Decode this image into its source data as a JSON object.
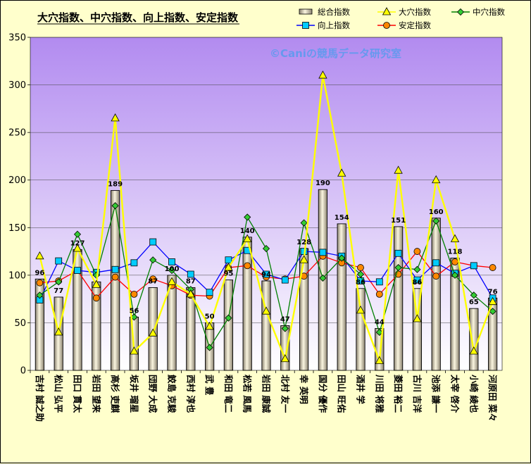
{
  "chart_data": {
    "type": "bar+line",
    "title": "大穴指数、中穴指数、向上指数、安定指数",
    "watermark": "©Caniの競馬データ研究室",
    "ylim": [
      0,
      350
    ],
    "yticks": [
      0,
      50,
      100,
      150,
      200,
      250,
      300,
      350
    ],
    "grid": true,
    "legend_position": "top-right",
    "categories": [
      "吉村 誠之助",
      "松山 弘平",
      "田口 貫太",
      "岩田 望来",
      "高杉 吏麒",
      "坂井 瑠星",
      "団野 大成",
      "鮫島 克駿",
      "西村 淳也",
      "武 豊",
      "和田 竜二",
      "松若 風馬",
      "岩田 康誠",
      "北村 友一",
      "幸 英明",
      "国分 優作",
      "田山 旺佑",
      "酒井 学",
      "川田 将雅",
      "菱田 裕二",
      "古川 吉洋",
      "池添 謙一",
      "太宰 啓介",
      "小崎 綾也",
      "河原田 菜々"
    ],
    "series": [
      {
        "name": "総合指数",
        "kind": "bar",
        "color": "#e8e0c0",
        "values": [
          96,
          77,
          127,
          93,
          189,
          56,
          87,
          100,
          87,
          50,
          95,
          140,
          94,
          47,
          128,
          190,
          154,
          86,
          44,
          151,
          86,
          160,
          118,
          65,
          76
        ],
        "data_labels": [
          "96",
          "77",
          "127",
          "",
          "189",
          "56",
          "87",
          "100",
          "87",
          "50",
          "95",
          "140",
          "94",
          "47",
          "128",
          "190",
          "154",
          "86",
          "44",
          "151",
          "86",
          "160",
          "118",
          "65",
          "76"
        ]
      },
      {
        "name": "大穴指数",
        "kind": "line",
        "color": "#ffff00",
        "marker": "triangle",
        "values": [
          120,
          40,
          128,
          90,
          265,
          20,
          39,
          93,
          80,
          46,
          108,
          138,
          62,
          12,
          116,
          310,
          207,
          63,
          10,
          210,
          54,
          200,
          138,
          20,
          72
        ]
      },
      {
        "name": "中穴指数",
        "kind": "line",
        "color": "#008000",
        "marker": "diamond",
        "values": [
          79,
          93,
          143,
          100,
          173,
          56,
          116,
          105,
          85,
          24,
          55,
          161,
          128,
          44,
          155,
          97,
          118,
          101,
          40,
          108,
          106,
          157,
          100,
          79,
          62
        ]
      },
      {
        "name": "向上指数",
        "kind": "line",
        "color": "#0000ff",
        "marker": "square",
        "values": [
          74,
          115,
          105,
          103,
          106,
          113,
          135,
          114,
          101,
          82,
          116,
          126,
          101,
          95,
          125,
          124,
          120,
          94,
          93,
          123,
          95,
          113,
          102,
          110,
          76
        ]
      },
      {
        "name": "安定指数",
        "kind": "line",
        "color": "#ff0000",
        "marker": "circle",
        "values": [
          92,
          94,
          105,
          76,
          98,
          80,
          96,
          89,
          79,
          78,
          108,
          110,
          98,
          96,
          99,
          120,
          113,
          108,
          80,
          101,
          125,
          99,
          114,
          110,
          108
        ]
      }
    ]
  }
}
